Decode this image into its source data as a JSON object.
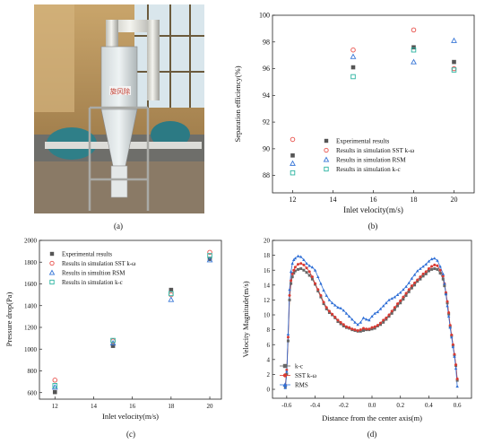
{
  "panel_labels": {
    "a": "(a)",
    "b": "(b)",
    "c": "(c)",
    "d": "(d)"
  },
  "photo": {
    "sign_text": "旋风除"
  },
  "chart_data": [
    {
      "id": "b",
      "type": "scatter",
      "xlabel": "Inlet velocity(m/s)",
      "ylabel": "Separation efficiency(%)",
      "xlim": [
        11,
        21
      ],
      "ylim": [
        86.7,
        100
      ],
      "xticks": [
        12,
        14,
        16,
        18,
        20
      ],
      "yticks": [
        88,
        90,
        92,
        94,
        96,
        98,
        100
      ],
      "legend_position": "bottom-right",
      "series": [
        {
          "name": "Experimental results",
          "marker": "filled-square",
          "color": "#555555",
          "x": [
            12,
            15,
            18,
            20
          ],
          "y": [
            89.5,
            96.1,
            97.6,
            96.5
          ]
        },
        {
          "name": "Results in simulation SST k-ω",
          "marker": "circle",
          "color": "#e8504a",
          "x": [
            12,
            15,
            18,
            20
          ],
          "y": [
            90.7,
            97.4,
            98.9,
            96.0
          ]
        },
        {
          "name": "Results in simulation RSM",
          "marker": "triangle",
          "color": "#3a78d8",
          "x": [
            12,
            15,
            18,
            20
          ],
          "y": [
            88.9,
            96.9,
            96.5,
            98.1
          ]
        },
        {
          "name": "Results in simulation k-c",
          "marker": "square",
          "color": "#2ab3a0",
          "x": [
            12,
            15,
            18,
            20
          ],
          "y": [
            88.2,
            95.4,
            97.4,
            95.9
          ]
        }
      ]
    },
    {
      "id": "c",
      "type": "scatter",
      "xlabel": "Inlet velocity(m/s)",
      "ylabel": "Pressure drop(Pa)",
      "xlim": [
        11.2,
        20.6
      ],
      "ylim": [
        540,
        2000
      ],
      "xticks": [
        12,
        14,
        16,
        18,
        20
      ],
      "yticks": [
        600,
        800,
        1000,
        1200,
        1400,
        1600,
        1800,
        2000
      ],
      "legend_position": "top-left",
      "series": [
        {
          "name": "Experimental results",
          "marker": "filled-square",
          "color": "#555555",
          "x": [
            12,
            15,
            18,
            20
          ],
          "y": [
            605,
            1030,
            1545,
            1830
          ]
        },
        {
          "name": "Results in simulation SST k-ω",
          "marker": "circle",
          "color": "#e8504a",
          "x": [
            12,
            15,
            18,
            20
          ],
          "y": [
            715,
            1075,
            1500,
            1890
          ]
        },
        {
          "name": "Results in simultion RSM",
          "marker": "triangle",
          "color": "#3a78d8",
          "x": [
            12,
            15,
            18,
            20
          ],
          "y": [
            650,
            1055,
            1455,
            1820
          ]
        },
        {
          "name": "Results in simulation k-c",
          "marker": "square",
          "color": "#2ab3a0",
          "x": [
            12,
            15,
            18,
            20
          ],
          "y": [
            665,
            1080,
            1510,
            1860
          ]
        }
      ]
    },
    {
      "id": "d",
      "type": "line",
      "xlabel": "Distance from the center axis(m)",
      "ylabel": "Velocity Magnitude(m/s)",
      "xlim": [
        -0.7,
        0.7
      ],
      "ylim": [
        -1.2,
        20
      ],
      "xticks": [
        -0.6,
        -0.4,
        -0.2,
        0.0,
        0.2,
        0.4,
        0.6
      ],
      "yticks": [
        0,
        2,
        4,
        6,
        8,
        10,
        12,
        14,
        16,
        18,
        20
      ],
      "legend_position": "bottom-left",
      "series": [
        {
          "name": "k-c",
          "marker": "filled-square",
          "color": "#666666",
          "x": [
            -0.61,
            -0.6,
            -0.59,
            -0.58,
            -0.57,
            -0.56,
            -0.55,
            -0.54,
            -0.52,
            -0.5,
            -0.48,
            -0.46,
            -0.44,
            -0.42,
            -0.4,
            -0.38,
            -0.36,
            -0.34,
            -0.32,
            -0.3,
            -0.28,
            -0.26,
            -0.24,
            -0.22,
            -0.2,
            -0.18,
            -0.16,
            -0.14,
            -0.12,
            -0.1,
            -0.08,
            -0.06,
            -0.04,
            -0.02,
            0.0,
            0.02,
            0.04,
            0.06,
            0.08,
            0.1,
            0.12,
            0.14,
            0.16,
            0.18,
            0.2,
            0.22,
            0.24,
            0.26,
            0.28,
            0.3,
            0.32,
            0.34,
            0.36,
            0.38,
            0.4,
            0.42,
            0.44,
            0.46,
            0.48,
            0.5,
            0.51,
            0.52,
            0.53,
            0.54,
            0.55,
            0.56,
            0.57,
            0.58,
            0.59,
            0.6
          ],
          "y": [
            0.3,
            2.0,
            6.5,
            12.0,
            14.2,
            15.1,
            15.6,
            15.9,
            16.1,
            16.2,
            16.0,
            15.7,
            15.3,
            14.8,
            14.1,
            13.2,
            12.4,
            11.5,
            10.8,
            10.3,
            10.0,
            9.6,
            9.1,
            8.8,
            8.5,
            8.3,
            8.2,
            8.0,
            7.9,
            7.8,
            7.8,
            7.9,
            8.0,
            8.0,
            8.1,
            8.2,
            8.5,
            8.7,
            9.0,
            9.4,
            9.8,
            10.2,
            10.7,
            11.2,
            11.6,
            12.1,
            12.6,
            13.1,
            13.6,
            14.0,
            14.5,
            14.8,
            15.2,
            15.5,
            15.9,
            16.1,
            16.2,
            16.1,
            15.6,
            14.8,
            13.9,
            12.8,
            11.6,
            10.1,
            8.4,
            7.2,
            5.9,
            4.6,
            3.2,
            1.2
          ]
        },
        {
          "name": "SST k-ω",
          "marker": "filled-circle",
          "color": "#d93a33",
          "x": [
            -0.61,
            -0.6,
            -0.59,
            -0.58,
            -0.57,
            -0.56,
            -0.55,
            -0.54,
            -0.52,
            -0.5,
            -0.48,
            -0.46,
            -0.44,
            -0.42,
            -0.4,
            -0.38,
            -0.36,
            -0.34,
            -0.32,
            -0.3,
            -0.28,
            -0.26,
            -0.24,
            -0.22,
            -0.2,
            -0.18,
            -0.16,
            -0.14,
            -0.12,
            -0.1,
            -0.08,
            -0.06,
            -0.04,
            -0.02,
            0.0,
            0.02,
            0.04,
            0.06,
            0.08,
            0.1,
            0.12,
            0.14,
            0.16,
            0.18,
            0.2,
            0.22,
            0.24,
            0.26,
            0.28,
            0.3,
            0.32,
            0.34,
            0.36,
            0.38,
            0.4,
            0.42,
            0.44,
            0.46,
            0.48,
            0.5,
            0.51,
            0.52,
            0.53,
            0.54,
            0.55,
            0.56,
            0.57,
            0.58,
            0.59,
            0.6
          ],
          "y": [
            0.6,
            2.6,
            7.0,
            12.6,
            14.6,
            15.5,
            16.0,
            16.4,
            16.8,
            16.9,
            16.7,
            16.3,
            15.8,
            15.1,
            14.2,
            13.4,
            12.6,
            11.7,
            11.0,
            10.5,
            10.1,
            9.7,
            9.3,
            9.0,
            8.7,
            8.4,
            8.3,
            8.1,
            8.0,
            7.9,
            8.0,
            8.2,
            8.1,
            8.1,
            8.3,
            8.4,
            8.6,
            8.9,
            9.3,
            9.6,
            10.0,
            10.5,
            11.0,
            11.5,
            11.9,
            12.4,
            12.9,
            13.4,
            13.9,
            14.3,
            14.7,
            15.1,
            15.5,
            15.8,
            16.2,
            16.5,
            16.7,
            16.6,
            16.0,
            15.2,
            14.2,
            13.0,
            11.8,
            10.3,
            8.6,
            7.3,
            6.0,
            4.7,
            3.3,
            1.4
          ]
        },
        {
          "name": "RMS",
          "marker": "filled-triangle",
          "color": "#2f6fd6",
          "x": [
            -0.61,
            -0.6,
            -0.59,
            -0.58,
            -0.57,
            -0.56,
            -0.55,
            -0.54,
            -0.52,
            -0.5,
            -0.48,
            -0.46,
            -0.44,
            -0.42,
            -0.4,
            -0.38,
            -0.36,
            -0.34,
            -0.32,
            -0.3,
            -0.28,
            -0.26,
            -0.24,
            -0.22,
            -0.2,
            -0.18,
            -0.16,
            -0.14,
            -0.12,
            -0.1,
            -0.08,
            -0.06,
            -0.04,
            -0.02,
            0.0,
            0.02,
            0.04,
            0.06,
            0.08,
            0.1,
            0.12,
            0.14,
            0.16,
            0.18,
            0.2,
            0.22,
            0.24,
            0.26,
            0.28,
            0.3,
            0.32,
            0.34,
            0.36,
            0.38,
            0.4,
            0.42,
            0.44,
            0.46,
            0.48,
            0.5,
            0.51,
            0.52,
            0.53,
            0.54,
            0.55,
            0.56,
            0.57,
            0.58,
            0.59,
            0.6
          ],
          "y": [
            0.2,
            2.4,
            7.4,
            13.4,
            15.8,
            16.9,
            17.4,
            17.6,
            17.9,
            17.8,
            17.4,
            16.9,
            16.6,
            16.4,
            16.0,
            15.1,
            14.2,
            13.3,
            12.6,
            12.0,
            11.6,
            11.3,
            11.0,
            10.9,
            10.6,
            10.2,
            9.8,
            9.4,
            9.0,
            8.7,
            9.0,
            9.6,
            9.4,
            9.3,
            9.8,
            10.2,
            10.4,
            10.8,
            11.2,
            11.6,
            12.0,
            12.2,
            12.4,
            12.7,
            13.0,
            13.4,
            13.8,
            14.3,
            14.9,
            15.4,
            15.9,
            16.2,
            16.5,
            16.8,
            17.2,
            17.5,
            17.6,
            17.3,
            16.5,
            15.5,
            14.2,
            12.8,
            11.2,
            9.8,
            8.3,
            7.0,
            5.7,
            4.4,
            2.8,
            0.4
          ]
        }
      ]
    }
  ]
}
